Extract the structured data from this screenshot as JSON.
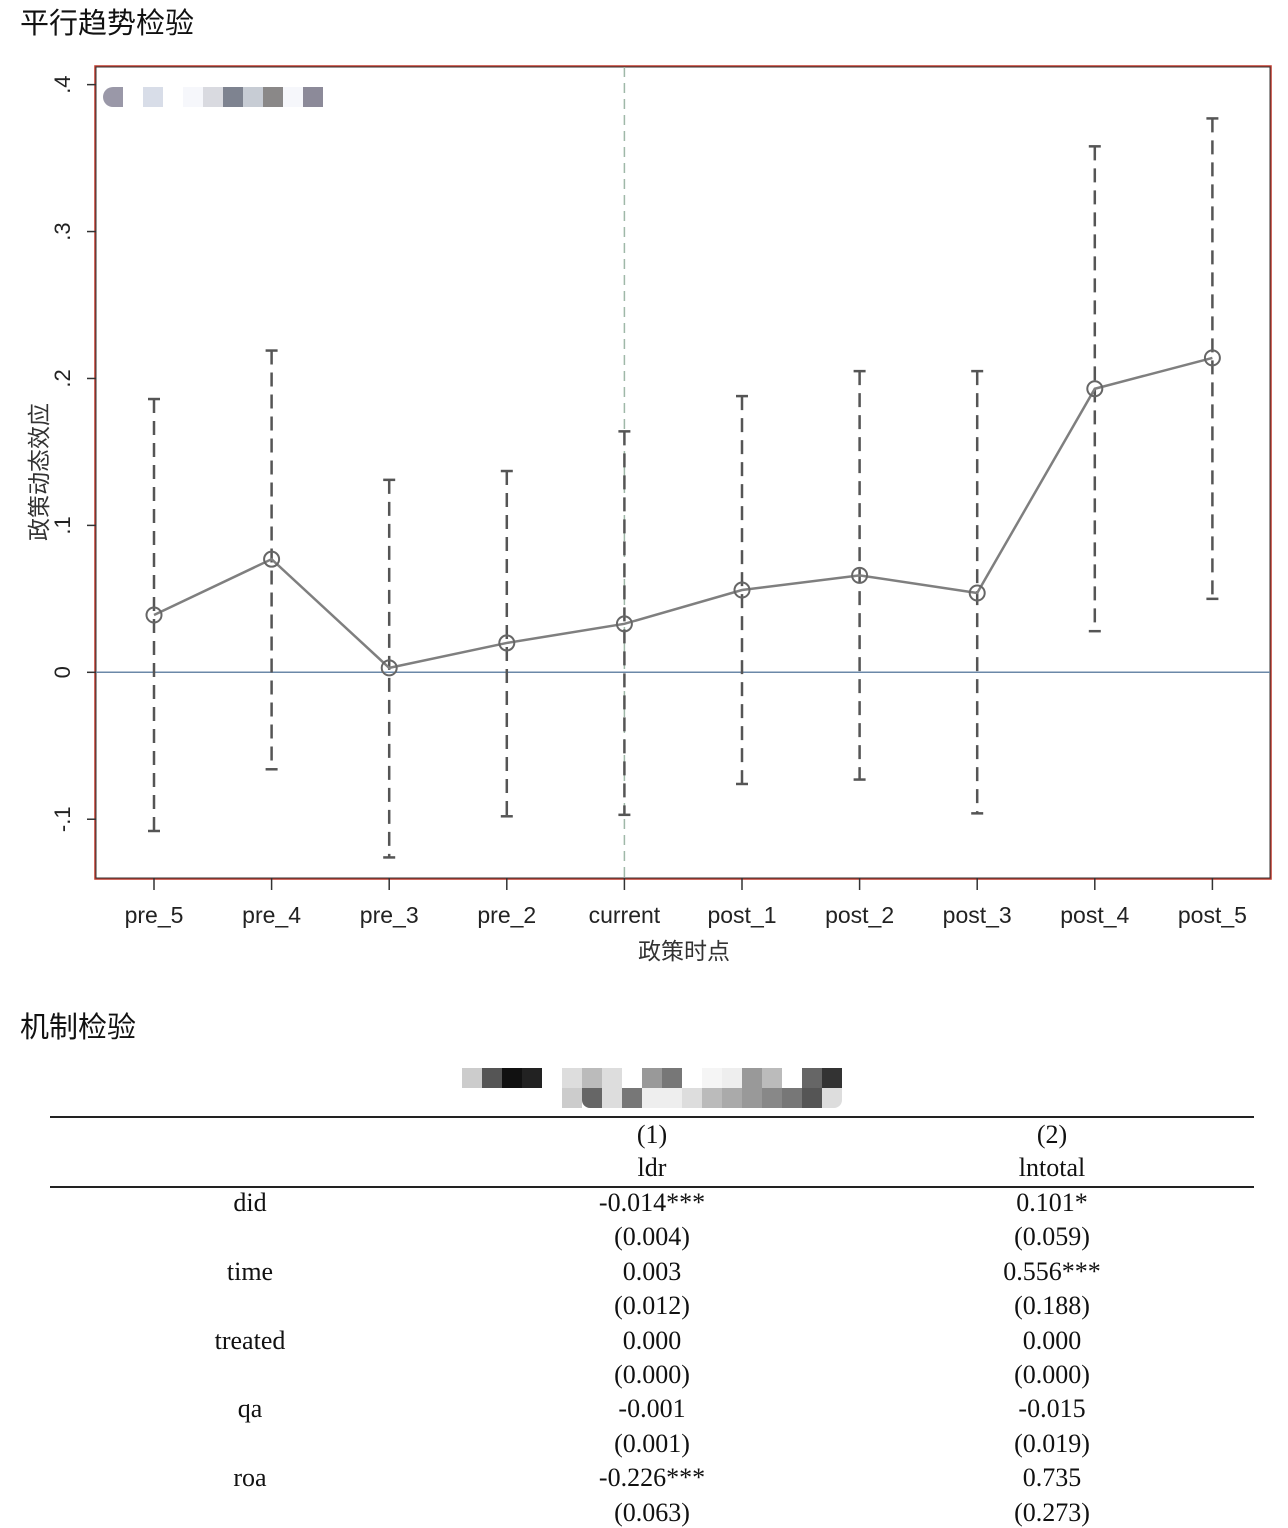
{
  "sections": {
    "chart_title": "平行趋势检验",
    "table_title": "机制检验"
  },
  "chart_data": {
    "type": "line",
    "title": "",
    "xlabel": "政策时点",
    "ylabel": "政策动态效应",
    "categories": [
      "pre_5",
      "pre_4",
      "pre_3",
      "pre_2",
      "current",
      "post_1",
      "post_2",
      "post_3",
      "post_4",
      "post_5"
    ],
    "series": [
      {
        "name": "coefficient",
        "values": [
          0.039,
          0.077,
          0.003,
          0.02,
          0.033,
          0.056,
          0.066,
          0.054,
          0.193,
          0.214
        ]
      },
      {
        "name": "ci_upper",
        "values": [
          0.186,
          0.219,
          0.131,
          0.137,
          0.164,
          0.188,
          0.205,
          0.205,
          0.358,
          0.377
        ]
      },
      {
        "name": "ci_lower",
        "values": [
          -0.108,
          -0.066,
          -0.126,
          -0.098,
          -0.097,
          -0.076,
          -0.073,
          -0.096,
          0.028,
          0.05
        ]
      }
    ],
    "yticks": [
      -0.1,
      0,
      0.1,
      0.2,
      0.3,
      0.4
    ],
    "ytick_labels": [
      "-.1",
      "0",
      ".1",
      ".2",
      ".3",
      ".4"
    ],
    "ylim": [
      -0.14,
      0.412
    ],
    "reference_line_y": 0,
    "reference_line_x": "current",
    "grid": false,
    "legend": "top-left (obscured)",
    "colors": {
      "line": "#7f7f7f",
      "ci": "#555555",
      "zero": "#6b88a8",
      "vline": "#9fb8a8",
      "frame": "#c0392b"
    }
  },
  "table": {
    "columns": [
      {
        "num": "(1)",
        "dep": "ldr"
      },
      {
        "num": "(2)",
        "dep": "lntotal"
      }
    ],
    "rows": [
      {
        "var": "did",
        "c1": "-0.014***",
        "c2": "0.101*"
      },
      {
        "var": "",
        "c1": "(0.004)",
        "c2": "(0.059)"
      },
      {
        "var": "time",
        "c1": "0.003",
        "c2": "0.556***"
      },
      {
        "var": "",
        "c1": "(0.012)",
        "c2": "(0.188)"
      },
      {
        "var": "treated",
        "c1": "0.000",
        "c2": "0.000"
      },
      {
        "var": "",
        "c1": "(0.000)",
        "c2": "(0.000)"
      },
      {
        "var": "qa",
        "c1": "-0.001",
        "c2": "-0.015"
      },
      {
        "var": "",
        "c1": "(0.001)",
        "c2": "(0.019)"
      },
      {
        "var": "roa",
        "c1": "-0.226***",
        "c2": "0.735"
      },
      {
        "var": "",
        "c1": "(0.063)",
        "c2": "(0.273)"
      }
    ]
  }
}
